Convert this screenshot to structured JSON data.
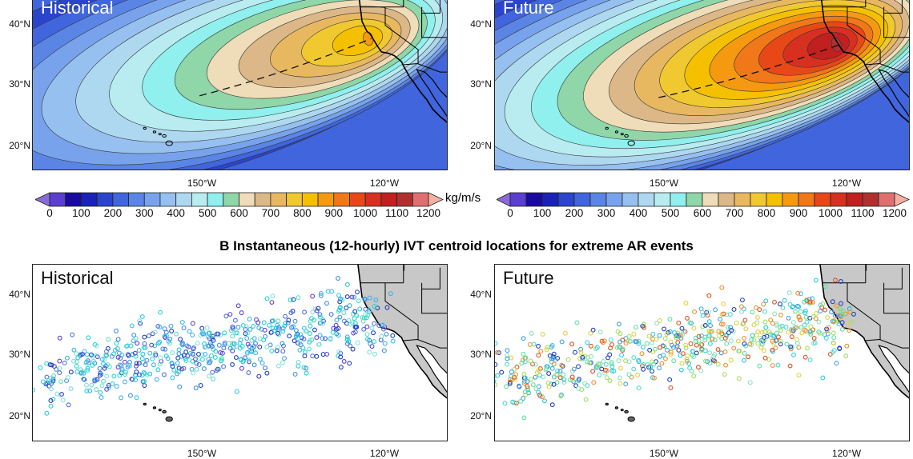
{
  "section_b_title": "B  Instantaneous (12-hourly) IVT centroid locations for extreme AR events",
  "panels": [
    {
      "label": "Historical",
      "kind": "contour",
      "peak_level": 17
    },
    {
      "label": "Future",
      "kind": "contour",
      "peak_level": 22
    },
    {
      "label": "Historical",
      "kind": "scatter"
    },
    {
      "label": "Future",
      "kind": "scatter"
    }
  ],
  "lat_ticks": [
    "40°N",
    "30°N",
    "20°N"
  ],
  "lon_ticks": [
    "150°W",
    "120°W"
  ],
  "colorbar": {
    "units": "kg/m/s",
    "tick_labels": [
      "0",
      "100",
      "200",
      "300",
      "400",
      "500",
      "600",
      "700",
      "800",
      "900",
      "1000",
      "1100",
      "1200"
    ],
    "colors": [
      "#5a3fd0",
      "#1a0aa0",
      "#1a22b8",
      "#2a45cc",
      "#4065dc",
      "#5a85e4",
      "#78a3ec",
      "#96c0f0",
      "#aed8f0",
      "#b8ecf0",
      "#8ff0ee",
      "#8fd6a8",
      "#efdcb8",
      "#dcb888",
      "#e8b860",
      "#f0c830",
      "#f5c000",
      "#f59a10",
      "#f07818",
      "#e84818",
      "#d83020",
      "#c02020",
      "#b03030",
      "#e07070"
    ],
    "under_color": "#8a6ad8",
    "over_color": "#f5b0a0"
  },
  "land_color": "#c8c8c8"
}
